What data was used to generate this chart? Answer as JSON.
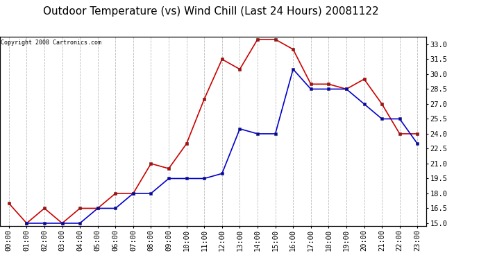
{
  "title": "Outdoor Temperature (vs) Wind Chill (Last 24 Hours) 20081122",
  "copyright": "Copyright 2008 Cartronics.com",
  "hours": [
    "00:00",
    "01:00",
    "02:00",
    "03:00",
    "04:00",
    "05:00",
    "06:00",
    "07:00",
    "08:00",
    "09:00",
    "10:00",
    "11:00",
    "12:00",
    "13:00",
    "14:00",
    "15:00",
    "16:00",
    "17:00",
    "18:00",
    "19:00",
    "20:00",
    "21:00",
    "22:00",
    "23:00"
  ],
  "temp": [
    17.0,
    15.0,
    16.5,
    15.0,
    16.5,
    16.5,
    18.0,
    18.0,
    21.0,
    20.5,
    23.0,
    27.5,
    31.5,
    30.5,
    33.5,
    33.5,
    32.5,
    29.0,
    29.0,
    28.5,
    29.5,
    27.0,
    24.0,
    24.0
  ],
  "windchill": [
    null,
    15.0,
    15.0,
    15.0,
    15.0,
    16.5,
    16.5,
    18.0,
    18.0,
    19.5,
    19.5,
    19.5,
    20.0,
    24.5,
    24.0,
    24.0,
    30.5,
    28.5,
    28.5,
    28.5,
    27.0,
    25.5,
    25.5,
    23.0
  ],
  "temp_color": "#cc0000",
  "windchill_color": "#0000cc",
  "ylim_min": 15.0,
  "ylim_max": 33.5,
  "yticks": [
    15.0,
    16.5,
    18.0,
    19.5,
    21.0,
    22.5,
    24.0,
    25.5,
    27.0,
    28.5,
    30.0,
    31.5,
    33.0
  ],
  "bg_color": "#ffffff",
  "grid_color": "#bbbbbb",
  "title_fontsize": 11,
  "copyright_fontsize": 6,
  "tick_fontsize": 7.5,
  "marker_size": 3.5,
  "linewidth": 1.2
}
